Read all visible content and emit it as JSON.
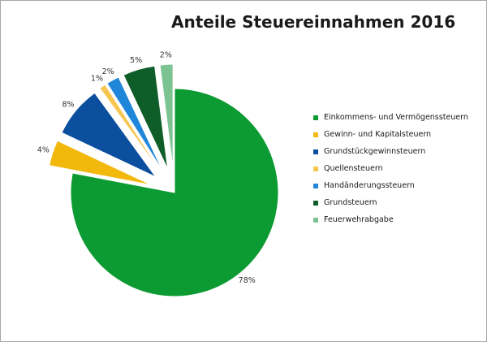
{
  "chart_data": {
    "type": "pie",
    "title": "Anteile Steuereinnahmen 2016",
    "legend_position": "right",
    "exploded": true,
    "slices": [
      {
        "label": "Einkommens- und Vermögenssteuern",
        "value": 78,
        "display": "78%",
        "color": "#0c9a32",
        "explode": false
      },
      {
        "label": "Gewinn- und Kapitalsteuern",
        "value": 4,
        "display": "4%",
        "color": "#f2b80c",
        "explode": true
      },
      {
        "label": "Grundstückgewinnsteuern",
        "value": 8,
        "display": "8%",
        "color": "#0b4f9e",
        "explode": true
      },
      {
        "label": "Quellensteuern",
        "value": 1,
        "display": "1%",
        "color": "#f6c651",
        "explode": true
      },
      {
        "label": "Handänderungssteuern",
        "value": 2,
        "display": "2%",
        "color": "#1f86d9",
        "explode": true
      },
      {
        "label": "Grundsteuern",
        "value": 5,
        "display": "5%",
        "color": "#0f5e2a",
        "explode": true
      },
      {
        "label": "Feuerwehrabgabe",
        "value": 2,
        "display": "2%",
        "color": "#7cc392",
        "explode": true
      }
    ]
  }
}
